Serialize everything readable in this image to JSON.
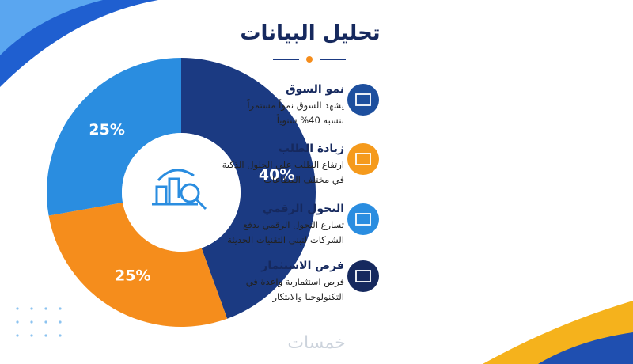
{
  "chart_data": {
    "type": "donut",
    "title": "تحليل البيانات",
    "categories": [
      "النمو",
      "الطلب",
      "التحول"
    ],
    "values": [
      40,
      25,
      25
    ],
    "value_labels": [
      "40%",
      "25%",
      "25%"
    ],
    "colors": [
      "#1b3a82",
      "#f58d1c",
      "#2a8de0"
    ]
  },
  "items": [
    {
      "title": "نمو السوق",
      "lines": [
        "يشهد السوق نمواً مستمراً",
        "بنسبة 40% سنوياً"
      ],
      "color": "#1d4f9e"
    },
    {
      "title": "زيادة الطلب",
      "lines": [
        "ارتفاع الطلب على الحلول الذكية",
        "في مختلف القطاعات"
      ],
      "color": "#f59a1c"
    },
    {
      "title": "التحول الرقمي",
      "lines": [
        "تسارع التحول الرقمي بدفع",
        "الشركات لتبني التقنيات الحديثة"
      ],
      "color": "#2a8de0"
    },
    {
      "title": "فرص الاستثمار",
      "lines": [
        "فرص استثمارية واعدة في",
        "التكنولوجيا والابتكار"
      ],
      "color": "#16295e"
    }
  ],
  "watermark": "خمسات"
}
